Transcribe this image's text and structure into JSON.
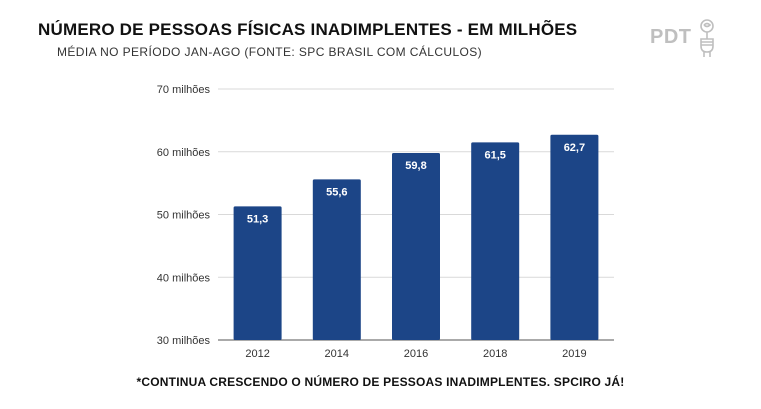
{
  "header": {
    "title": "NÚMERO DE PESSOAS FÍSICAS INADIMPLENTES - EM MILHÕES",
    "subtitle": "MÉDIA NO PERÍODO JAN-AGO (FONTE: SPC BRASIL COM CÁLCULOS)"
  },
  "logo": {
    "text": "PDT",
    "icon": "fist-holding-rose-icon"
  },
  "footer": {
    "note": "*CONTINUA CRESCENDO O NÚMERO DE PESSOAS INADIMPLENTES. SPCIRO JÁ!"
  },
  "chart_data": {
    "type": "bar",
    "categories": [
      "2012",
      "2014",
      "2016",
      "2018",
      "2019"
    ],
    "values": [
      51.3,
      55.6,
      59.8,
      61.5,
      62.7
    ],
    "value_labels": [
      "51,3",
      "55,6",
      "59,8",
      "61,5",
      "62,7"
    ],
    "ylim": [
      30,
      70
    ],
    "yticks": [
      30,
      40,
      50,
      60,
      70
    ],
    "ytick_labels": [
      "30 milhões",
      "40 milhões",
      "50 milhões",
      "60 milhões",
      "70 milhões"
    ],
    "grid": true,
    "bar_color": "#1c4587",
    "label_color": "#ffffff"
  }
}
